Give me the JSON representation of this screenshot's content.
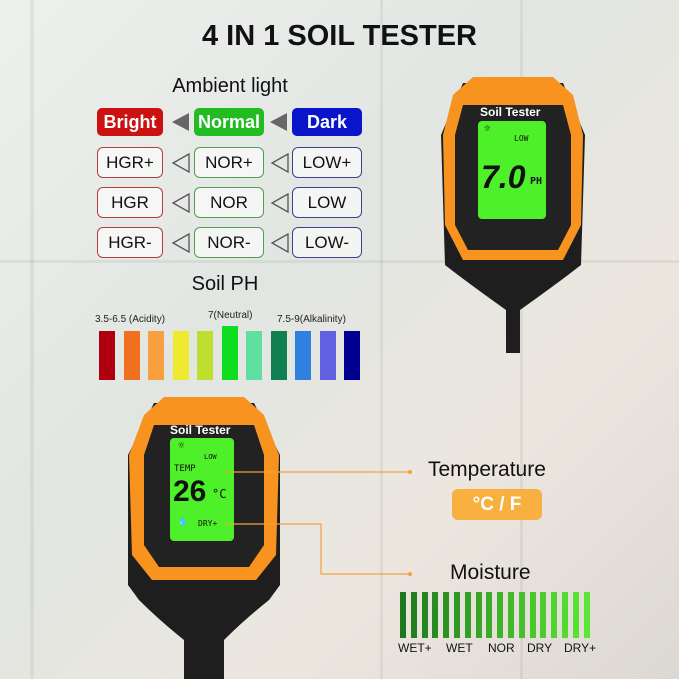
{
  "title": "4 IN 1 SOIL TESTER",
  "ambient": {
    "heading": "Ambient light",
    "levels": [
      {
        "label": "Bright",
        "color": "#cc1111"
      },
      {
        "label": "Normal",
        "color": "#22bb22"
      },
      {
        "label": "Dark",
        "color": "#0a14c8"
      }
    ],
    "rows": [
      [
        "HGR+",
        "NOR+",
        "LOW+"
      ],
      [
        "HGR",
        "NOR",
        "LOW"
      ],
      [
        "HGR-",
        "NOR-",
        "LOW-"
      ]
    ]
  },
  "ph": {
    "heading": "Soil PH",
    "labels": {
      "acid": "3.5-6.5 (Acidity)",
      "neutral": "7(Neutral)",
      "alkaline": "7.5-9(Alkalinity)"
    },
    "colors": [
      "#b00010",
      "#f07020",
      "#f8a040",
      "#eeea30",
      "#bede30",
      "#10dd20",
      "#60e0a0",
      "#108050",
      "#3080e0",
      "#6060e0",
      "#000090"
    ]
  },
  "top_device": {
    "brand": "Soil Tester",
    "light": "LOW",
    "reading": "7.0",
    "unit": "PH"
  },
  "bottom_device": {
    "brand": "Soil Tester",
    "light": "LOW",
    "temp_label": "TEMP",
    "reading": "26",
    "unit": "°C",
    "moisture": "DRY+"
  },
  "temperature": {
    "heading": "Temperature",
    "units": "°C / F",
    "accent": "#f8b040"
  },
  "moisture": {
    "heading": "Moisture",
    "scale": [
      "WET+",
      "WET",
      "NOR",
      "DRY",
      "DRY+"
    ],
    "bar_count": 18
  }
}
